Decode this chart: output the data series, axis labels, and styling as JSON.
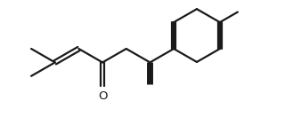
{
  "background": "#ffffff",
  "line_color": "#1a1a1a",
  "line_width": 1.6,
  "figsize": [
    3.2,
    1.32
  ],
  "dpi": 100
}
